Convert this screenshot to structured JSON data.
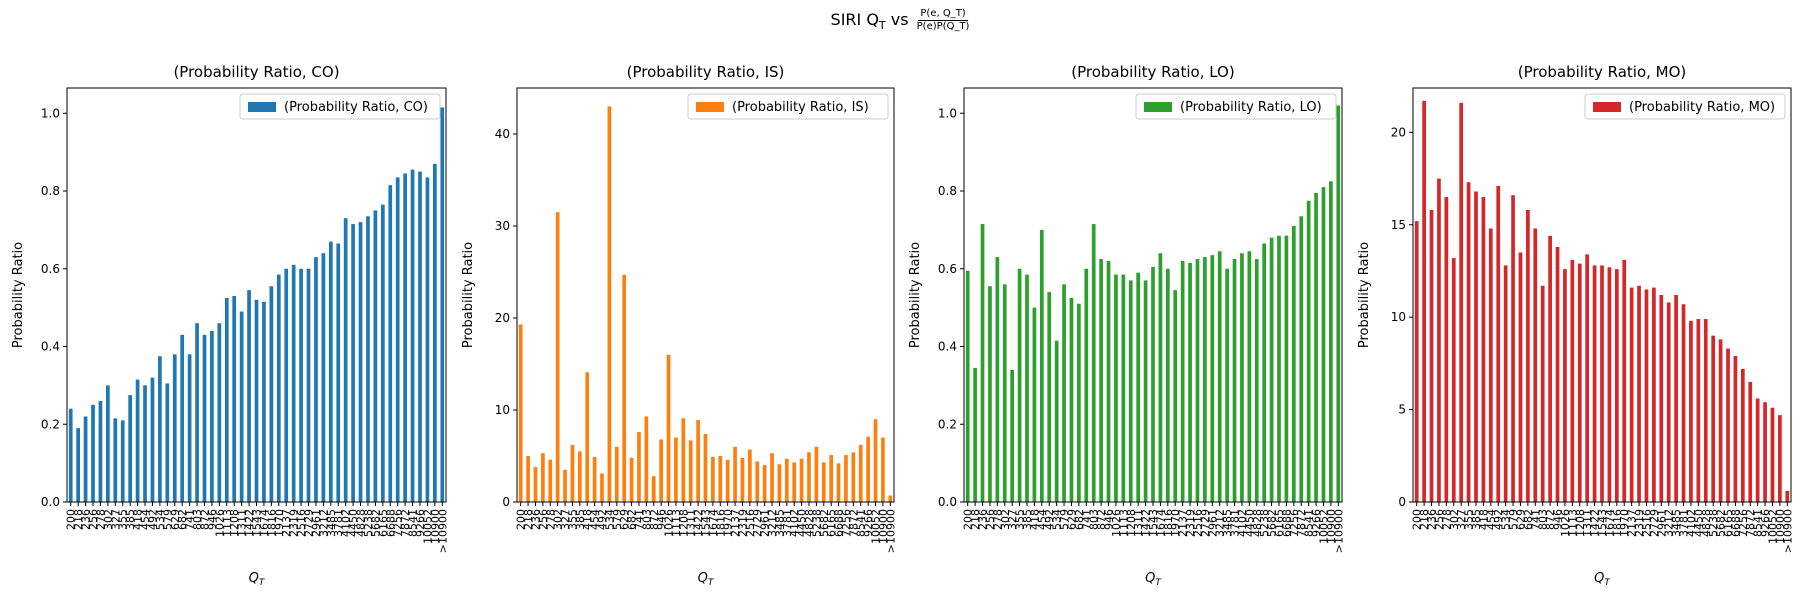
{
  "figure": {
    "suptitle_prefix": "SIRI Q",
    "suptitle_sub": "T",
    "suptitle_vs": "vs",
    "frac_numerator": "P(e, Q_T)",
    "frac_denominator": "P(e)P(Q_T)"
  },
  "chart_data": [
    {
      "type": "bar",
      "title": "(Probability Ratio, CO)",
      "legend": "(Probability Ratio, CO)",
      "legend_position": "top-right",
      "color": "#1f77b4",
      "xlabel": "Q_T",
      "ylabel": "Probability Ratio",
      "ylim": [
        0,
        1.065
      ],
      "yticks": [
        0.0,
        0.2,
        0.4,
        0.6,
        0.8,
        1.0
      ],
      "ytick_labels": [
        "0.0",
        "0.2",
        "0.4",
        "0.6",
        "0.8",
        "1.0"
      ],
      "categories": [
        "200",
        "218",
        "236",
        "256",
        "278",
        "302",
        "327",
        "355",
        "385",
        "418",
        "454",
        "492",
        "534",
        "579",
        "629",
        "682",
        "741",
        "803",
        "872",
        "946",
        "1026",
        "1113",
        "1208",
        "1311",
        "1422",
        "1543",
        "1674",
        "1816",
        "1970",
        "2137",
        "2319",
        "2516",
        "2729",
        "2961",
        "3212",
        "3485",
        "3781",
        "4102",
        "4450",
        "4828",
        "5238",
        "5682",
        "6165",
        "6688",
        "7256",
        "7872",
        "8541",
        "9266",
        "10052",
        "10900",
        ">10900"
      ],
      "values": [
        0.24,
        0.19,
        0.22,
        0.25,
        0.26,
        0.3,
        0.215,
        0.21,
        0.275,
        0.315,
        0.3,
        0.32,
        0.375,
        0.305,
        0.38,
        0.43,
        0.38,
        0.46,
        0.43,
        0.44,
        0.46,
        0.525,
        0.53,
        0.49,
        0.545,
        0.52,
        0.515,
        0.555,
        0.585,
        0.6,
        0.61,
        0.6,
        0.6,
        0.63,
        0.64,
        0.67,
        0.665,
        0.73,
        0.715,
        0.72,
        0.735,
        0.75,
        0.765,
        0.815,
        0.835,
        0.845,
        0.855,
        0.85,
        0.835,
        0.87,
        1.015
      ]
    },
    {
      "type": "bar",
      "title": "(Probability Ratio, IS)",
      "legend": "(Probability Ratio, IS)",
      "legend_position": "top-right",
      "color": "#ff7f0e",
      "xlabel": "Q_T",
      "ylabel": "Probability Ratio",
      "ylim": [
        0,
        45
      ],
      "yticks": [
        0,
        10,
        20,
        30,
        40
      ],
      "ytick_labels": [
        "0",
        "10",
        "20",
        "30",
        "40"
      ],
      "categories": [
        "200",
        "218",
        "236",
        "256",
        "278",
        "302",
        "327",
        "355",
        "385",
        "418",
        "454",
        "492",
        "534",
        "579",
        "629",
        "682",
        "741",
        "803",
        "872",
        "946",
        "1026",
        "1113",
        "1208",
        "1311",
        "1422",
        "1543",
        "1674",
        "1816",
        "1970",
        "2137",
        "2319",
        "2516",
        "2729",
        "2961",
        "3212",
        "3485",
        "3781",
        "4102",
        "4450",
        "4828",
        "5238",
        "5682",
        "6165",
        "6688",
        "7256",
        "7872",
        "8541",
        "9266",
        "10052",
        "10900",
        ">10900"
      ],
      "values": [
        19.3,
        5.0,
        3.8,
        5.3,
        4.6,
        31.5,
        3.5,
        6.2,
        5.5,
        14.1,
        4.9,
        3.1,
        43.0,
        6.0,
        24.7,
        4.8,
        7.6,
        9.3,
        2.8,
        6.8,
        16.0,
        7.0,
        9.1,
        6.7,
        8.9,
        7.4,
        4.9,
        5.0,
        4.6,
        6.0,
        4.8,
        5.7,
        4.4,
        4.0,
        5.3,
        4.1,
        4.7,
        4.3,
        4.7,
        5.4,
        6.0,
        4.3,
        5.1,
        4.2,
        5.1,
        5.4,
        6.2,
        7.1,
        9.0,
        7.0,
        0.7
      ]
    },
    {
      "type": "bar",
      "title": "(Probability Ratio, LO)",
      "legend": "(Probability Ratio, LO)",
      "legend_position": "top-right",
      "color": "#2ca02c",
      "xlabel": "Q_T",
      "ylabel": "Probability Ratio",
      "ylim": [
        0,
        1.065
      ],
      "yticks": [
        0.0,
        0.2,
        0.4,
        0.6,
        0.8,
        1.0
      ],
      "ytick_labels": [
        "0.0",
        "0.2",
        "0.4",
        "0.6",
        "0.8",
        "1.0"
      ],
      "categories": [
        "200",
        "218",
        "236",
        "256",
        "278",
        "302",
        "327",
        "355",
        "385",
        "418",
        "454",
        "492",
        "534",
        "579",
        "629",
        "682",
        "741",
        "803",
        "872",
        "946",
        "1026",
        "1113",
        "1208",
        "1311",
        "1422",
        "1543",
        "1674",
        "1816",
        "1970",
        "2137",
        "2319",
        "2516",
        "2729",
        "2961",
        "3212",
        "3485",
        "3781",
        "4102",
        "4450",
        "4828",
        "5238",
        "5682",
        "6165",
        "6688",
        "7256",
        "7872",
        "8541",
        "9266",
        "10052",
        "10900",
        ">10900"
      ],
      "values": [
        0.595,
        0.345,
        0.715,
        0.555,
        0.63,
        0.56,
        0.34,
        0.6,
        0.585,
        0.5,
        0.7,
        0.54,
        0.415,
        0.56,
        0.525,
        0.51,
        0.6,
        0.715,
        0.625,
        0.62,
        0.585,
        0.585,
        0.57,
        0.59,
        0.57,
        0.605,
        0.64,
        0.6,
        0.545,
        0.62,
        0.615,
        0.625,
        0.63,
        0.635,
        0.645,
        0.6,
        0.625,
        0.64,
        0.645,
        0.625,
        0.665,
        0.68,
        0.685,
        0.685,
        0.71,
        0.735,
        0.775,
        0.795,
        0.81,
        0.825,
        1.02
      ]
    },
    {
      "type": "bar",
      "title": "(Probability Ratio, MO)",
      "legend": "(Probability Ratio, MO)",
      "legend_position": "top-right",
      "color": "#d62728",
      "xlabel": "Q_T",
      "ylabel": "Probability Ratio",
      "ylim": [
        0,
        22.4
      ],
      "yticks": [
        0,
        5,
        10,
        15,
        20
      ],
      "ytick_labels": [
        "0",
        "5",
        "10",
        "15",
        "20"
      ],
      "categories": [
        "200",
        "218",
        "236",
        "256",
        "278",
        "302",
        "327",
        "355",
        "385",
        "418",
        "454",
        "492",
        "534",
        "579",
        "629",
        "682",
        "741",
        "803",
        "872",
        "946",
        "1026",
        "1113",
        "1208",
        "1311",
        "1422",
        "1543",
        "1674",
        "1816",
        "1970",
        "2137",
        "2319",
        "2516",
        "2729",
        "2961",
        "3212",
        "3485",
        "3781",
        "4102",
        "4450",
        "4828",
        "5238",
        "5682",
        "6165",
        "6688",
        "7256",
        "7872",
        "8541",
        "9266",
        "10052",
        "10900",
        ">10900"
      ],
      "values": [
        15.2,
        21.7,
        15.8,
        17.5,
        16.5,
        13.2,
        21.6,
        17.3,
        16.8,
        16.5,
        14.8,
        17.1,
        12.8,
        16.6,
        13.5,
        15.8,
        14.8,
        11.7,
        14.4,
        13.8,
        12.6,
        13.1,
        12.9,
        13.4,
        12.8,
        12.8,
        12.7,
        12.6,
        13.1,
        11.6,
        11.7,
        11.5,
        11.6,
        11.2,
        10.8,
        11.2,
        10.7,
        9.8,
        9.9,
        9.9,
        9.0,
        8.8,
        8.3,
        7.9,
        7.2,
        6.5,
        5.6,
        5.4,
        5.1,
        4.7,
        0.6
      ]
    }
  ]
}
